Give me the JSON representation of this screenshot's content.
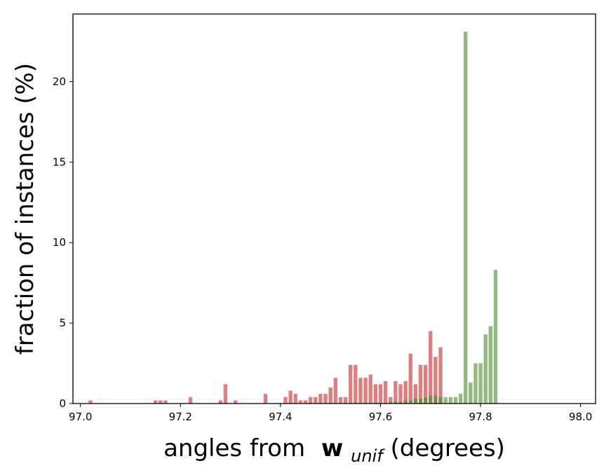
{
  "chart_data": {
    "type": "bar",
    "xlabel": "angles from",
    "xlabel_bold": "w",
    "xlabel_sub": "unif",
    "xlabel_suffix": " (degrees)",
    "ylabel": "fraction of instances (%)",
    "xlim": [
      96.985,
      98.03
    ],
    "ylim": [
      0,
      24.2
    ],
    "xticks": [
      "97.0",
      "97.2",
      "97.4",
      "97.6",
      "97.8",
      "98.0"
    ],
    "yticks": [
      "0",
      "5",
      "10",
      "15",
      "20"
    ],
    "grid": false,
    "bar_width": 0.0075,
    "series": [
      {
        "color": "#c62a2a",
        "alpha": 0.6,
        "x": [
          97.02,
          97.15,
          97.16,
          97.17,
          97.22,
          97.28,
          97.29,
          97.3,
          97.31,
          97.36,
          97.37,
          97.38,
          97.39,
          97.4,
          97.41,
          97.42,
          97.43,
          97.44,
          97.45,
          97.46,
          97.47,
          97.48,
          97.49,
          97.5,
          97.51,
          97.52,
          97.53,
          97.54,
          97.55,
          97.56,
          97.57,
          97.58,
          97.59,
          97.6,
          97.61,
          97.62,
          97.63,
          97.64,
          97.65,
          97.66,
          97.67,
          97.68,
          97.69,
          97.7,
          97.71,
          97.72,
          97.73,
          97.74,
          97.75,
          97.76,
          97.77,
          97.78,
          97.79,
          97.8,
          97.81,
          97.82,
          97.83,
          97.84,
          97.85,
          97.86,
          97.87,
          97.88,
          97.89,
          97.9,
          97.91,
          97.92,
          97.93,
          97.94,
          97.95,
          97.96,
          97.97,
          97.98,
          97.99
        ],
        "values": [
          0.2,
          0.2,
          0.2,
          0.2,
          0.4,
          0.2,
          1.2,
          0.0,
          0.2,
          0.0,
          0.6,
          0.0,
          0.0,
          0.0,
          0.4,
          0.8,
          0.6,
          0.2,
          0.2,
          0.4,
          0.4,
          0.6,
          0.6,
          1.0,
          1.6,
          0.4,
          0.4,
          2.4,
          2.4,
          1.6,
          1.6,
          1.8,
          1.2,
          1.2,
          1.4,
          0.4,
          1.4,
          1.2,
          1.4,
          3.1,
          1.2,
          2.4,
          2.4,
          4.5,
          2.9,
          3.5,
          0,
          0,
          0,
          0,
          0,
          0,
          0,
          0,
          0,
          0,
          0,
          0,
          0,
          0,
          0,
          0,
          0,
          0,
          0,
          0,
          0,
          0,
          0,
          0,
          0,
          0,
          0
        ]
      },
      {
        "color": "#4a8a2a",
        "alpha": 0.6,
        "x": [
          97.62,
          97.63,
          97.64,
          97.65,
          97.66,
          97.67,
          97.68,
          97.69,
          97.7,
          97.71,
          97.72,
          97.73,
          97.74,
          97.75,
          97.76,
          97.77,
          97.78,
          97.79,
          97.8,
          97.81,
          97.82,
          97.83,
          97.84,
          97.85,
          97.86,
          97.87,
          97.88,
          97.89,
          97.9,
          97.91,
          97.92,
          97.93,
          97.94,
          97.95,
          97.96,
          97.97,
          97.98,
          97.99
        ],
        "values": [
          0.1,
          0.1,
          0.1,
          0.2,
          0.2,
          0.3,
          0.3,
          0.4,
          0.5,
          0.5,
          0.4,
          0.4,
          0.4,
          0.4,
          0.6,
          23.1,
          1.3,
          2.5,
          2.5,
          4.3,
          4.8,
          8.3,
          0,
          0,
          0,
          0,
          0,
          0,
          0,
          0,
          0,
          0,
          0,
          0,
          0,
          0,
          0,
          0
        ]
      }
    ]
  }
}
